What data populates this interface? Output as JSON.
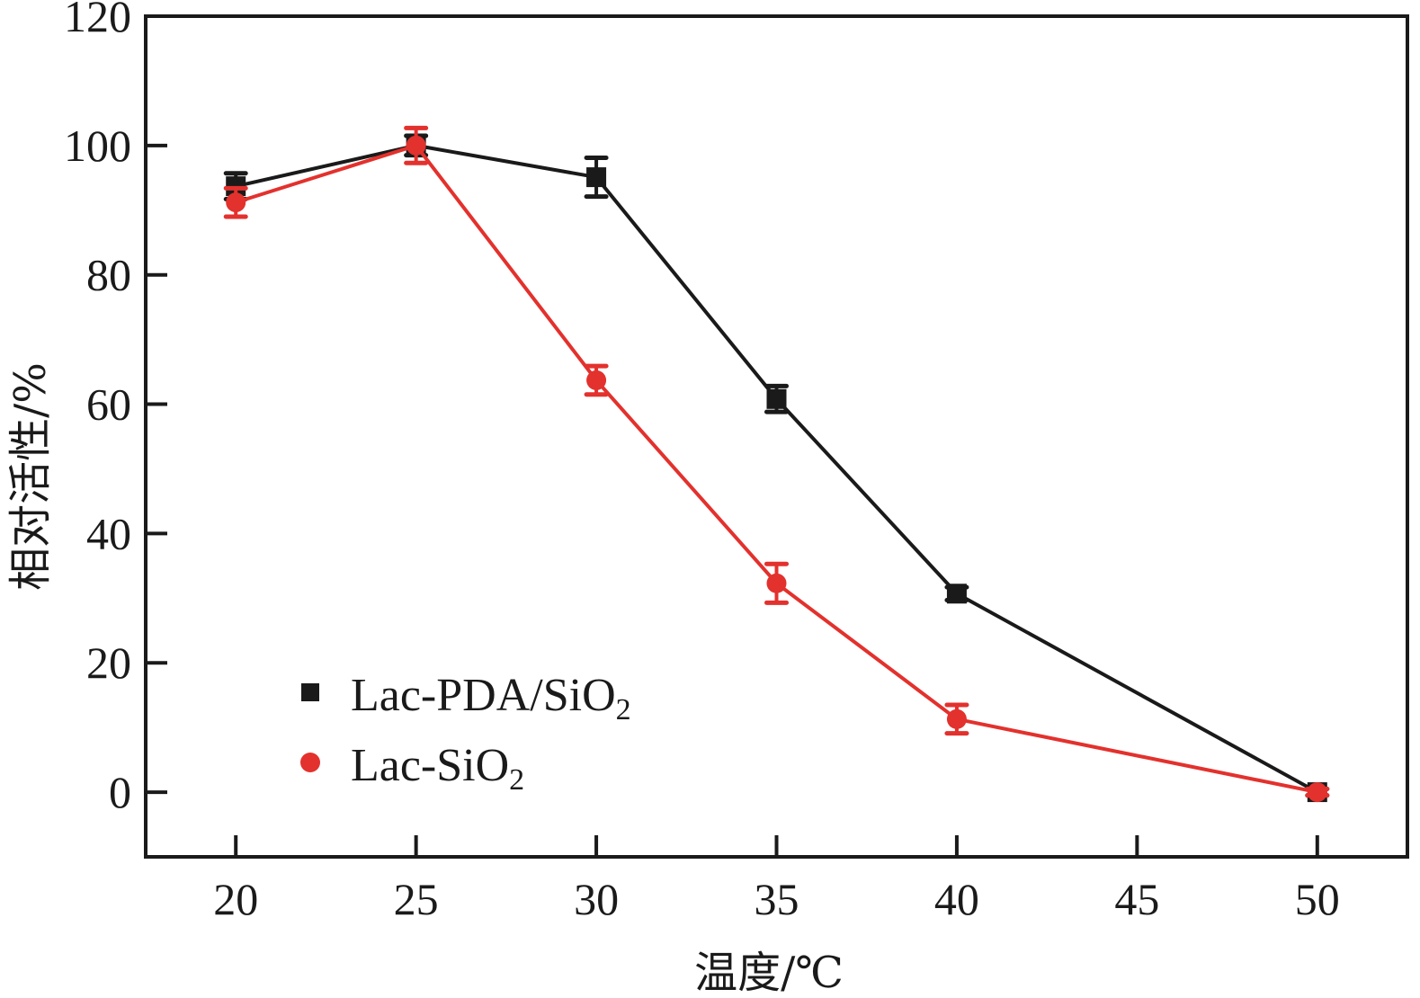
{
  "chart_data": {
    "type": "line",
    "title": "",
    "xlabel": "温度/℃",
    "ylabel": "相对活性/%",
    "xlim": [
      17.5,
      52.5
    ],
    "ylim": [
      -10,
      120
    ],
    "xticks": [
      20,
      25,
      30,
      35,
      40,
      45,
      50
    ],
    "yticks": [
      0,
      20,
      40,
      60,
      80,
      100,
      120
    ],
    "grid": false,
    "legend_position": "bottom-left",
    "x": [
      20,
      25,
      30,
      35,
      40,
      50
    ],
    "series": [
      {
        "name": "Lac-PDA/SiO₂",
        "color": "#1a1a1a",
        "marker": "square",
        "values": [
          93.7,
          100,
          95.1,
          60.8,
          30.7,
          0
        ],
        "errors": [
          2.0,
          1.5,
          3.0,
          2.0,
          1.0,
          0.5
        ]
      },
      {
        "name": "Lac-SiO₂",
        "color": "#e3312d",
        "marker": "circle",
        "values": [
          91.2,
          100,
          63.7,
          32.3,
          11.3,
          0
        ],
        "errors": [
          2.2,
          2.7,
          2.2,
          3.0,
          2.2,
          0.5
        ]
      }
    ]
  }
}
